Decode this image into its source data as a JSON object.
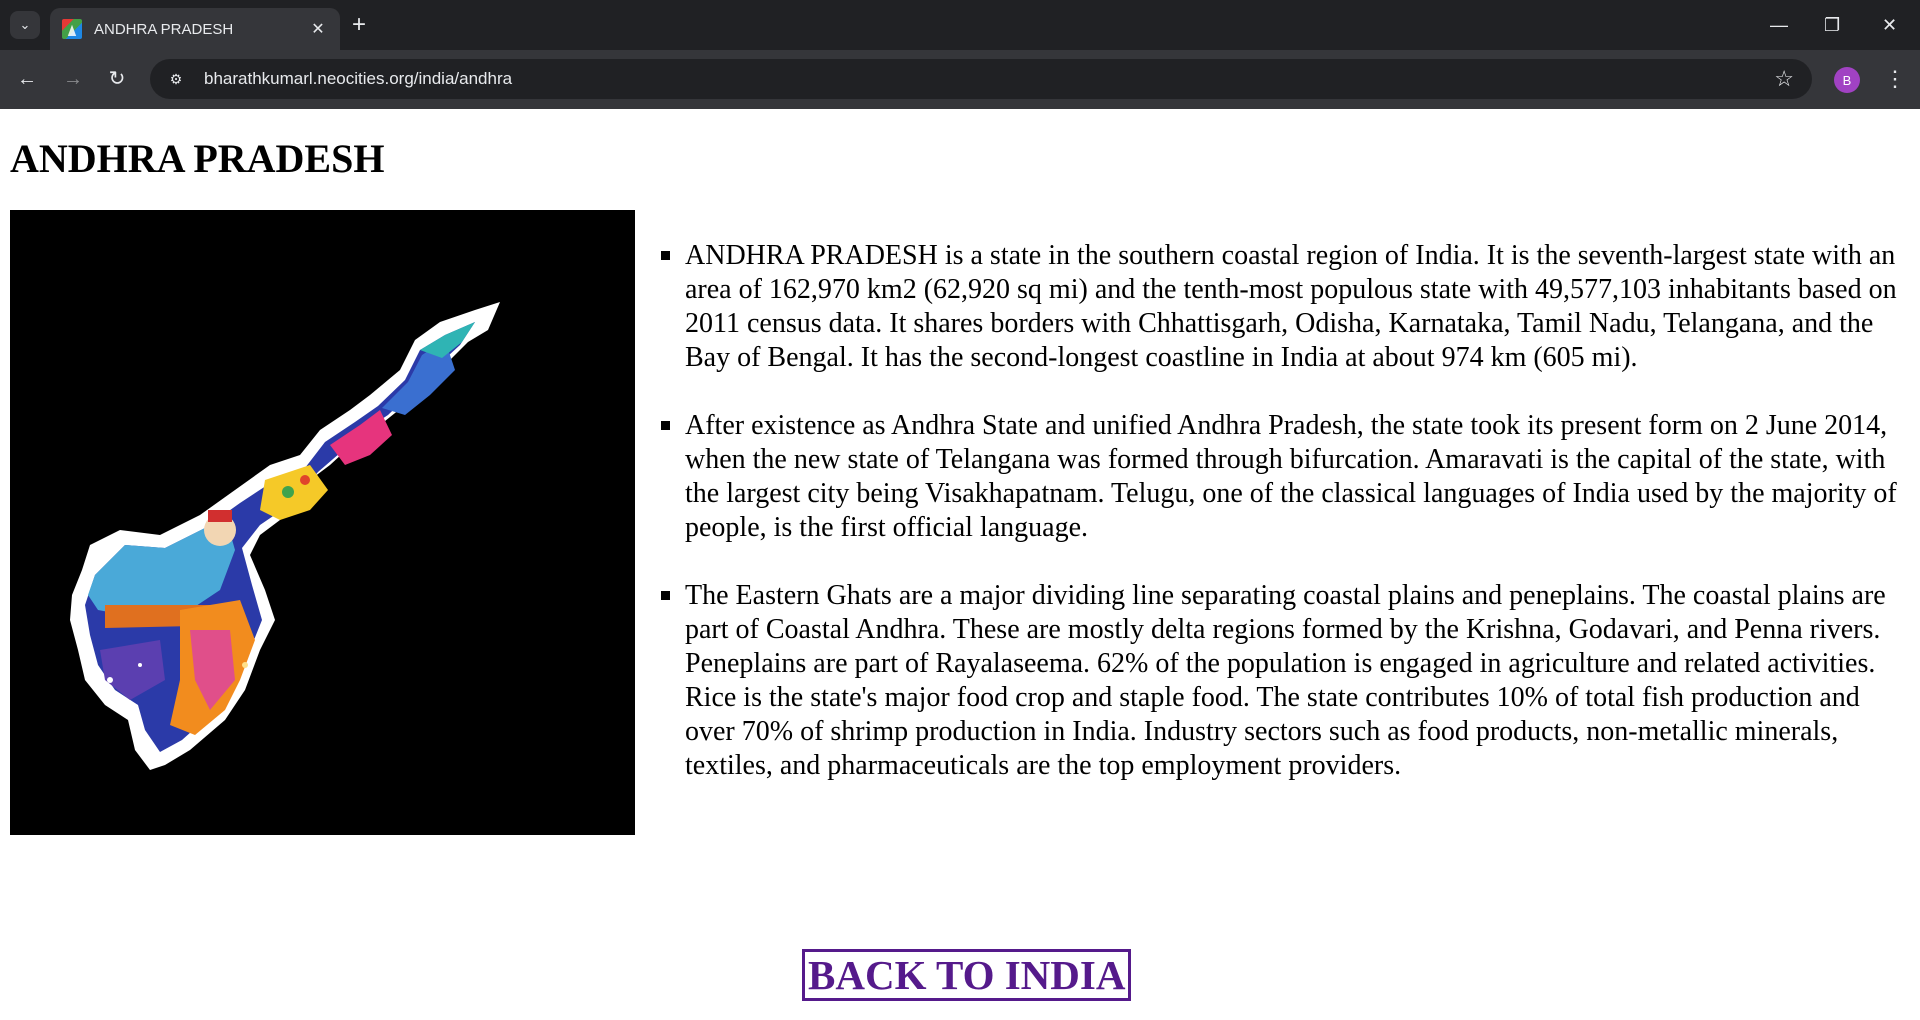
{
  "browser": {
    "tab_title": "ANDHRA PRADESH",
    "url": "bharathkumarl.neocities.org/india/andhra",
    "profile_initial": "B",
    "icons": {
      "tab_search": "chevron-down-icon",
      "close_tab": "close-icon",
      "new_tab": "plus-icon",
      "back": "arrow-left-icon",
      "forward": "arrow-right-icon",
      "reload": "reload-icon",
      "site_info": "tune-icon",
      "bookmark": "star-icon",
      "menu": "kebab-menu-icon"
    }
  },
  "page": {
    "title": "ANDHRA PRADESH",
    "paragraphs": [
      "ANDHRA PRADESH is a state in the southern coastal region of India. It is the seventh-largest state with an area of 162,970 km2 (62,920 sq mi) and the tenth-most populous state with 49,577,103 inhabitants based on 2011 census data. It shares borders with Chhattisgarh, Odisha, Karnataka, Tamil Nadu, Telangana, and the Bay of Bengal. It has the second-longest coastline in India at about 974 km (605 mi).",
      "After existence as Andhra State and unified Andhra Pradesh, the state took its present form on 2 June 2014, when the new state of Telangana was formed through bifurcation. Amaravati is the capital of the state, with the largest city being Visakhapatnam. Telugu, one of the classical languages of India used by the majority of people, is the first official language.",
      "The Eastern Ghats are a major dividing line separating coastal plains and peneplains. The coastal plains are part of Coastal Andhra. These are mostly delta regions formed by the Krishna, Godavari, and Penna rivers. Peneplains are part of Rayalaseema. 62% of the population is engaged in agriculture and related activities. Rice is the state's major food crop and staple food. The state contributes 10% of total fish production and over 70% of shrimp production in India. Industry sectors such as food products, non-metallic minerals, textiles, and pharmaceuticals are the top employment providers."
    ],
    "back_link": "BACK TO INDIA",
    "colors": {
      "link": "#551a8b",
      "image_background": "#000000"
    }
  }
}
